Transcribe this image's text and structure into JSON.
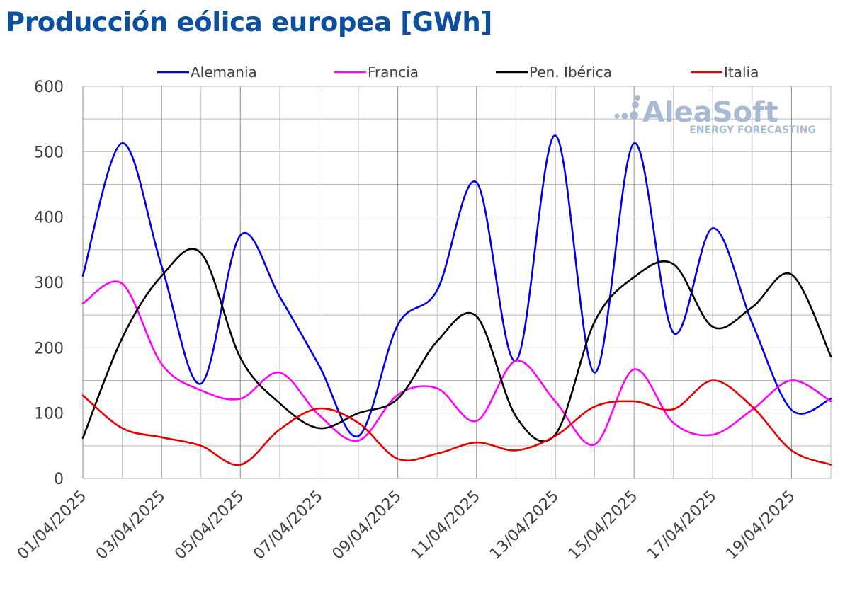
{
  "title": "Producción eólica europea [GWh]",
  "watermark": {
    "brand": "AleaSoft",
    "tagline": "ENERGY FORECASTING"
  },
  "chart_data": {
    "type": "line",
    "title": "Producción eólica europea [GWh]",
    "xlabel": "",
    "ylabel": "",
    "ylim": [
      0,
      600
    ],
    "y_ticks": [
      0,
      100,
      200,
      300,
      400,
      500,
      600
    ],
    "grid": true,
    "legend_position": "top",
    "x": [
      "01/04/2025",
      "02/04/2025",
      "03/04/2025",
      "04/04/2025",
      "05/04/2025",
      "06/04/2025",
      "07/04/2025",
      "08/04/2025",
      "09/04/2025",
      "10/04/2025",
      "11/04/2025",
      "12/04/2025",
      "13/04/2025",
      "14/04/2025",
      "15/04/2025",
      "16/04/2025",
      "17/04/2025",
      "18/04/2025",
      "19/04/2025",
      "20/04/2025"
    ],
    "x_tick_labels": [
      "01/04/2025",
      "03/04/2025",
      "05/04/2025",
      "07/04/2025",
      "09/04/2025",
      "11/04/2025",
      "13/04/2025",
      "15/04/2025",
      "17/04/2025",
      "19/04/2025"
    ],
    "series": [
      {
        "name": "Alemania",
        "color": "#0000e6",
        "values": [
          310,
          513,
          325,
          145,
          372,
          278,
          173,
          65,
          235,
          288,
          453,
          180,
          525,
          162,
          513,
          223,
          383,
          238,
          105,
          122
        ]
      },
      {
        "name": "Francia",
        "color": "#ff00ff",
        "values": [
          268,
          298,
          175,
          135,
          122,
          162,
          97,
          58,
          128,
          138,
          88,
          180,
          118,
          52,
          167,
          85,
          67,
          105,
          150,
          118
        ]
      },
      {
        "name": "Pen. Ibérica",
        "color": "#000000",
        "values": [
          62,
          215,
          310,
          345,
          185,
          115,
          77,
          100,
          122,
          210,
          248,
          95,
          67,
          240,
          308,
          328,
          232,
          262,
          312,
          187
        ]
      },
      {
        "name": "Italia",
        "color": "#e60000",
        "values": [
          127,
          77,
          63,
          50,
          21,
          75,
          107,
          85,
          30,
          38,
          55,
          43,
          65,
          110,
          118,
          106,
          150,
          110,
          43,
          21
        ]
      }
    ]
  }
}
